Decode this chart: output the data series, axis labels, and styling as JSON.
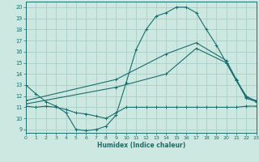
{
  "xlabel": "Humidex (Indice chaleur)",
  "xlim": [
    0,
    23
  ],
  "ylim": [
    8.7,
    20.5
  ],
  "xticks": [
    0,
    1,
    2,
    3,
    4,
    5,
    6,
    7,
    8,
    9,
    10,
    11,
    12,
    13,
    14,
    15,
    16,
    17,
    18,
    19,
    20,
    21,
    22,
    23
  ],
  "yticks": [
    9,
    10,
    11,
    12,
    13,
    14,
    15,
    16,
    17,
    18,
    19,
    20
  ],
  "bg_color": "#cce8e0",
  "grid_color": "#aacfc8",
  "line_color": "#1a6e6e",
  "curve1_x": [
    0,
    1,
    2,
    3,
    4,
    5,
    6,
    7,
    8,
    9,
    10,
    11,
    12,
    13,
    14,
    15,
    16,
    17,
    18,
    19,
    20,
    21,
    22,
    23
  ],
  "curve1_y": [
    13.0,
    12.2,
    11.5,
    11.1,
    10.5,
    9.0,
    8.9,
    9.0,
    9.3,
    10.3,
    13.2,
    16.2,
    18.0,
    19.2,
    19.5,
    20.0,
    20.0,
    19.5,
    18.0,
    16.6,
    15.0,
    13.4,
    12.0,
    11.5
  ],
  "curve2_x": [
    0,
    1,
    2,
    3,
    4,
    5,
    6,
    7,
    8,
    9,
    10,
    11,
    12,
    13,
    14,
    15,
    16,
    17,
    18,
    19,
    20,
    21,
    22,
    23
  ],
  "curve2_y": [
    11.1,
    11.0,
    11.1,
    11.0,
    10.8,
    10.5,
    10.4,
    10.2,
    10.0,
    10.5,
    11.0,
    11.0,
    11.0,
    11.0,
    11.0,
    11.0,
    11.0,
    11.0,
    11.0,
    11.0,
    11.0,
    11.0,
    11.1,
    11.1
  ],
  "curve3_x": [
    0,
    9,
    14,
    17,
    20,
    21,
    22,
    23
  ],
  "curve3_y": [
    11.3,
    12.8,
    14.0,
    16.3,
    15.0,
    13.4,
    11.8,
    11.5
  ],
  "curve4_x": [
    0,
    9,
    14,
    17,
    20,
    21,
    22,
    23
  ],
  "curve4_y": [
    11.6,
    13.5,
    15.8,
    16.8,
    15.2,
    13.5,
    11.9,
    11.6
  ]
}
